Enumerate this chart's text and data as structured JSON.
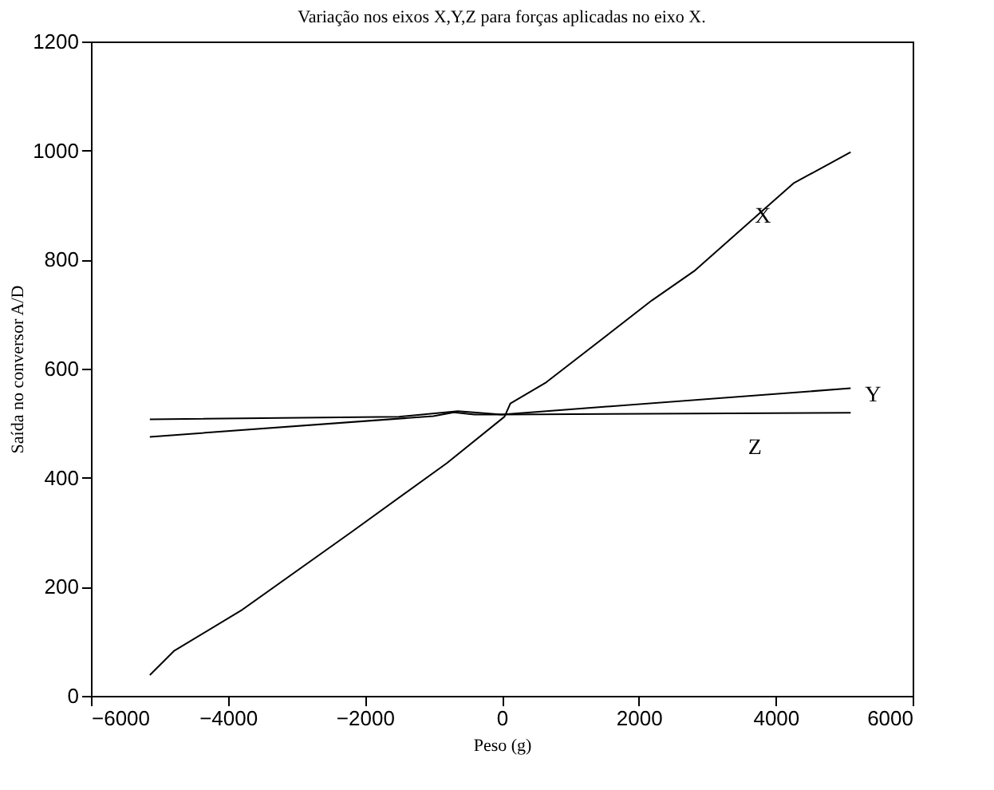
{
  "chart_data": {
    "type": "line",
    "title": "Variação nos eixos X,Y,Z para forças aplicadas no eixo X.",
    "xlabel": "Peso (g)",
    "ylabel": "Saída no conversor A/D",
    "series": [
      {
        "name": "X",
        "color": "#000000",
        "x": [
          -5140,
          -4790,
          -3790,
          -2200,
          -800,
          40,
          125,
          650,
          2190,
          2810,
          4260,
          5095
        ],
        "values": [
          38,
          82,
          158,
          300,
          427,
          512,
          536,
          575,
          725,
          779,
          940,
          997
        ]
      },
      {
        "name": "Y",
        "color": "#000000",
        "x": [
          -5140,
          -1000,
          -700,
          -400,
          0,
          5095
        ],
        "values": [
          475,
          513,
          520,
          516,
          516,
          564
        ]
      },
      {
        "name": "Z",
        "color": "#000000",
        "x": [
          -5140,
          -1500,
          -640,
          0,
          5095
        ],
        "values": [
          507,
          512,
          522,
          516,
          519
        ]
      }
    ],
    "xlim": [
      -6000,
      6000
    ],
    "xticks": [
      -6000,
      -4000,
      -2000,
      0,
      2000,
      4000,
      6000
    ],
    "ylim": [
      0,
      1200
    ],
    "yticks": [
      0,
      200,
      400,
      600,
      800,
      1000,
      1200
    ],
    "grid": false,
    "marker": "none",
    "line_style": "solid"
  }
}
